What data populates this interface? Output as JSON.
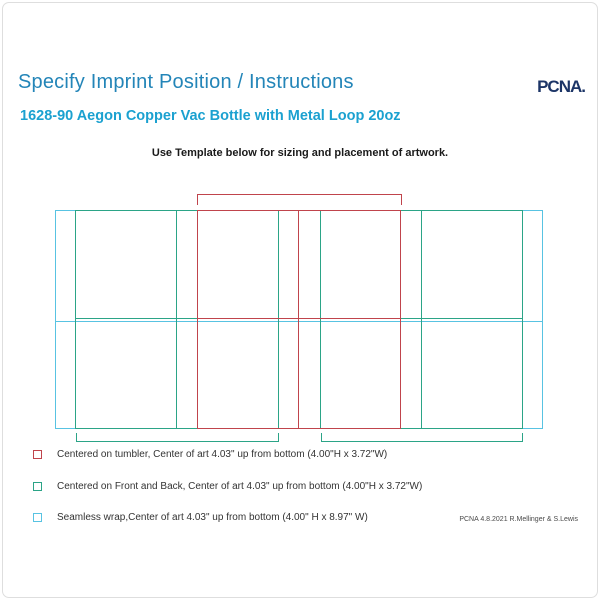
{
  "header": {
    "title": "Specify Imprint Position / Instructions",
    "logo_text": "PCNA.",
    "product_title": "1628-90 Aegon Copper Vac Bottle with Metal Loop 20oz"
  },
  "instruction": "Use Template below for sizing and placement of artwork.",
  "legend": [
    {
      "swatch": "red",
      "text": "Centered on tumbler, Center of art 4.03\" up from bottom (4.00\"H x 3.72\"W)"
    },
    {
      "swatch": "teal",
      "text": "Centered on Front and Back, Center of art 4.03\" up from bottom (4.00\"H x 3.72\"W)"
    },
    {
      "swatch": "cyan",
      "text": "Seamless wrap,Center of art 4.03\" up from bottom (4.00\" H x 8.97\" W)"
    }
  ],
  "template_zones": {
    "tumbler": {
      "color": "#c0444c",
      "label": "Centered on tumbler"
    },
    "front_back": {
      "color": "#2ba487",
      "label": "Centered on Front and Back"
    },
    "seamless_wrap": {
      "color": "#58c3e2",
      "label": "Seamless wrap"
    }
  },
  "colors": {
    "title_blue": "#2385b8",
    "product_blue": "#1ba1d0",
    "logo_navy": "#1c3567",
    "red": "#c0444c",
    "teal": "#2ba487",
    "cyan": "#58c3e2"
  },
  "footer": "PCNA 4.8.2021 R.Mellinger & S.Lewis"
}
